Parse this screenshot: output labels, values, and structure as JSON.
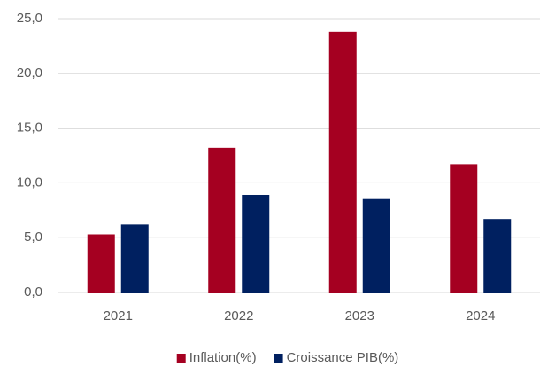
{
  "chart_data": {
    "type": "bar",
    "categories": [
      "2021",
      "2022",
      "2023",
      "2024"
    ],
    "series": [
      {
        "name": "Inflation(%)",
        "color": "#a50021",
        "values": [
          5.3,
          13.2,
          23.8,
          11.7
        ]
      },
      {
        "name": "Croissance PIB(%)",
        "color": "#002060",
        "values": [
          6.2,
          8.9,
          8.6,
          6.7
        ]
      }
    ],
    "ylim": [
      0,
      25
    ],
    "yticks": [
      {
        "value": 0,
        "label": "0,0"
      },
      {
        "value": 5,
        "label": "5,0"
      },
      {
        "value": 10,
        "label": "10,0"
      },
      {
        "value": 15,
        "label": "15,0"
      },
      {
        "value": 20,
        "label": "20,0"
      },
      {
        "value": 25,
        "label": "25,0"
      }
    ],
    "grid": true,
    "legend": "bottom"
  }
}
